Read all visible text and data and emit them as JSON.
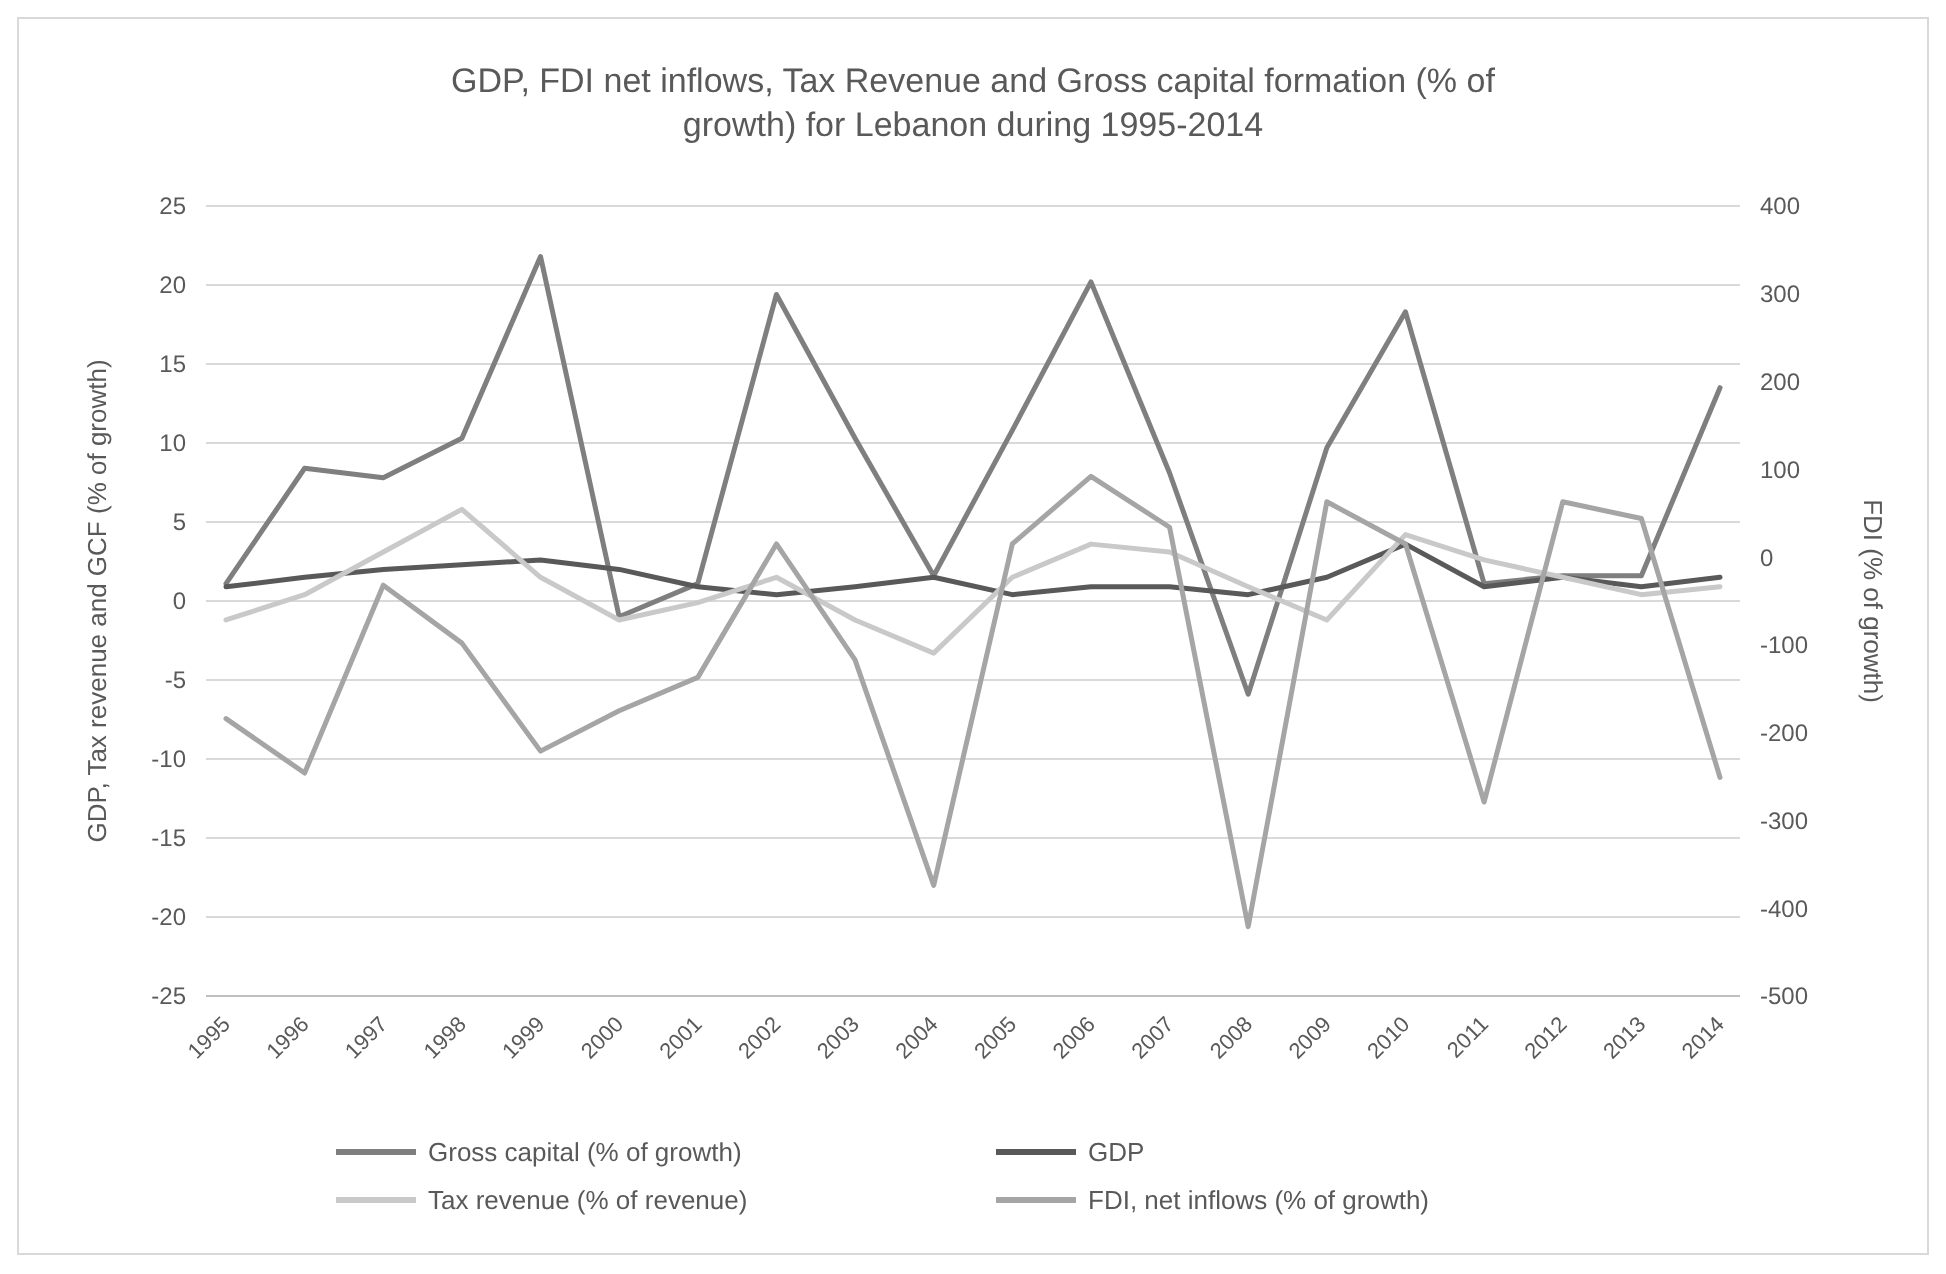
{
  "chart_data": {
    "type": "line",
    "title": "GDP, FDI net inflows, Tax Revenue and Gross capital formation (% of growth) for Lebanon during 1995-2014",
    "ylabel": "GDP, Tax revenue and GCF (% of growth)",
    "y2label": "FDI (% of growth)",
    "categories": [
      "1995",
      "1996",
      "1997",
      "1998",
      "1999",
      "2000",
      "2001",
      "2002",
      "2003",
      "2004",
      "2005",
      "2006",
      "2007",
      "2008",
      "2009",
      "2010",
      "2011",
      "2012",
      "2013",
      "2014"
    ],
    "ylim": [
      -25,
      25
    ],
    "yticks": [
      -25,
      -20,
      -15,
      -10,
      -5,
      0,
      5,
      10,
      15,
      20,
      25
    ],
    "y2lim": [
      -500,
      400
    ],
    "y2ticks": [
      -500,
      -400,
      -300,
      -200,
      -100,
      0,
      100,
      200,
      300,
      400
    ],
    "grid": "y",
    "legend": "bottom",
    "marker": "none",
    "series": [
      {
        "name": "Gross capital (% of growth)",
        "color": "#7f7f7f",
        "values": [
          1.1,
          8.4,
          7.8,
          10.3,
          21.8,
          -1.0,
          1.1,
          19.4,
          10.3,
          1.6,
          10.8,
          20.2,
          8.1,
          -5.9,
          9.7,
          18.3,
          1.1,
          1.6,
          1.6,
          13.5
        ]
      },
      {
        "name": "GDP",
        "color": "#595959",
        "values": [
          0.9,
          1.5,
          2.0,
          2.3,
          2.6,
          2.0,
          0.9,
          0.4,
          0.9,
          1.5,
          0.4,
          0.9,
          0.9,
          0.4,
          1.5,
          3.6,
          0.9,
          1.5,
          0.9,
          1.5
        ]
      },
      {
        "name": "Tax revenue (% of revenue)",
        "color": "#c9c9c9",
        "values": [
          -1.2,
          0.4,
          3.1,
          5.8,
          1.5,
          -1.2,
          -0.1,
          1.5,
          -1.2,
          -3.3,
          1.5,
          3.6,
          3.1,
          0.9,
          -1.2,
          4.2,
          2.6,
          1.5,
          0.4,
          0.9
        ]
      },
      {
        "name": "FDI, net inflows (% of growth)",
        "color": "#a5a5a5",
        "axis": "y2",
        "values": [
          -184,
          -246,
          -32,
          -98,
          -221,
          -175,
          -137,
          15,
          -117,
          -374,
          15,
          92,
          34,
          -421,
          63,
          15,
          -279,
          63,
          44,
          -251
        ]
      }
    ]
  }
}
